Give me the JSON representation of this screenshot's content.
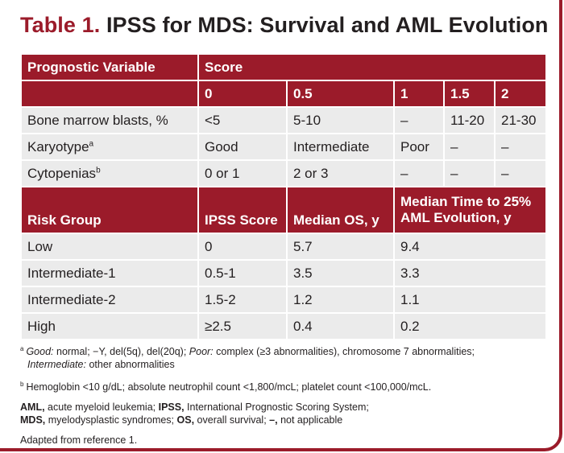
{
  "title": {
    "label": "Table 1.",
    "text": "IPSS for MDS: Survival and AML Evolution"
  },
  "prognostic": {
    "header": {
      "variable": "Prognostic Variable",
      "score": "Score"
    },
    "scores": [
      "0",
      "0.5",
      "1",
      "1.5",
      "2"
    ],
    "rows": [
      {
        "label": "Bone marrow blasts, %",
        "sup": "",
        "values": [
          "<5",
          "5-10",
          "–",
          "11-20",
          "21-30"
        ]
      },
      {
        "label": "Karyotype",
        "sup": "a",
        "values": [
          "Good",
          "Intermediate",
          "Poor",
          "–",
          "–"
        ]
      },
      {
        "label": "Cytopenias",
        "sup": "b",
        "values": [
          "0 or 1",
          "2 or 3",
          "–",
          "–",
          "–"
        ]
      }
    ]
  },
  "risk": {
    "header": {
      "group": "Risk Group",
      "ipss": "IPSS Score",
      "os": "Median OS, y",
      "aml_line1": "Median Time to 25%",
      "aml_line2": "AML Evolution, y"
    },
    "rows": [
      {
        "group": "Low",
        "ipss": "0",
        "os": "5.7",
        "aml": "9.4"
      },
      {
        "group": "Intermediate-1",
        "ipss": "0.5-1",
        "os": "3.5",
        "aml": "3.3"
      },
      {
        "group": "Intermediate-2",
        "ipss": "1.5-2",
        "os": "1.2",
        "aml": "1.1"
      },
      {
        "group": "High",
        "ipss": "≥2.5",
        "os": "0.4",
        "aml": "0.2"
      }
    ]
  },
  "footnotes": {
    "a": {
      "mark": "a",
      "good_label": "Good:",
      "good_text": " normal; −Y, del(5q), del(20q); ",
      "poor_label": "Poor:",
      "poor_text": " complex (≥3 abnormalities), chromosome 7 abnormalities;",
      "intermediate_label": "Intermediate:",
      "intermediate_text": " other abnormalities"
    },
    "b": {
      "mark": "b",
      "text": "Hemoglobin <10 g/dL; absolute neutrophil count <1,800/mcL; platelet count <100,000/mcL."
    },
    "abbr": {
      "aml_label": "AML,",
      "aml_text": " acute myeloid leukemia; ",
      "ipss_label": "IPSS,",
      "ipss_text": " International Prognostic Scoring System;",
      "mds_label": "MDS,",
      "mds_text": " myelodysplastic syndromes; ",
      "os_label": "OS,",
      "os_text": " overall survival; ",
      "na_label": "–,",
      "na_text": " not applicable"
    },
    "source": "Adapted from reference 1."
  },
  "colors": {
    "header": "#9b1b2a",
    "cell": "#ebebeb",
    "text": "#231f20"
  }
}
